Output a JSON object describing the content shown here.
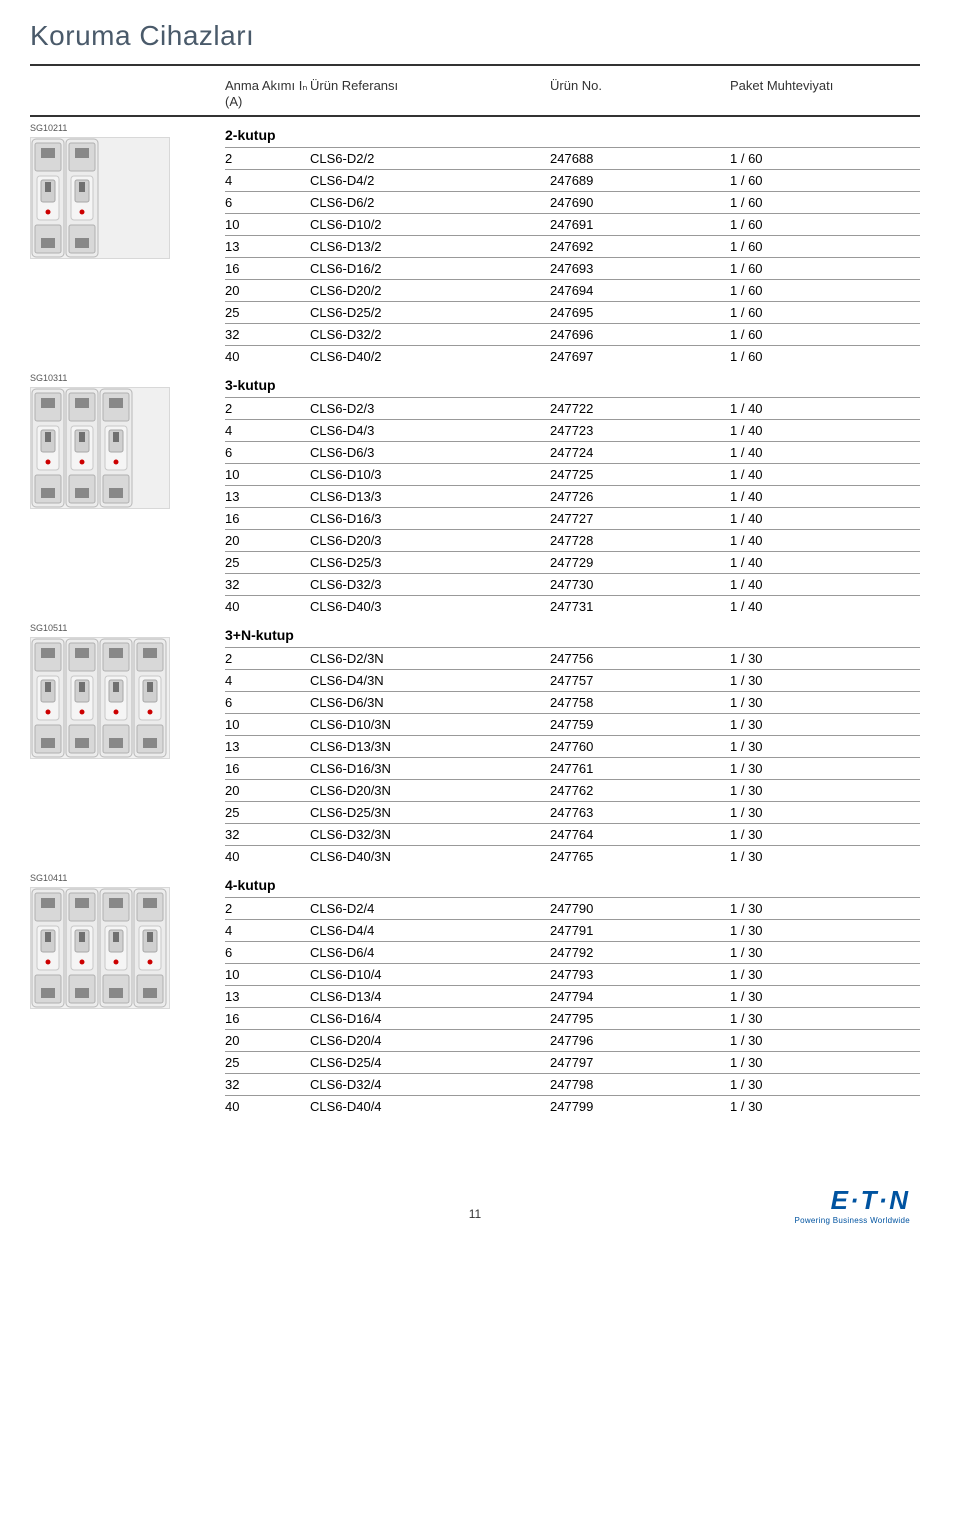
{
  "page_title": "Koruma Cihazları",
  "headers": {
    "col1": "Anma Akımı Iₙ (A)",
    "col2": "Ürün Referansı",
    "col3": "Ürün No.",
    "col4": "Paket Muhteviyatı"
  },
  "page_number": "11",
  "logo": {
    "brand": "E·T·N",
    "tagline": "Powering Business Worldwide"
  },
  "sections": [
    {
      "sg": "SG10211",
      "subtitle": "2-kutup",
      "poles": 2,
      "rows": [
        {
          "amp": "2",
          "ref": "CLS6-D2/2",
          "no": "247688",
          "pkg": "1 / 60"
        },
        {
          "amp": "4",
          "ref": "CLS6-D4/2",
          "no": "247689",
          "pkg": "1 / 60"
        },
        {
          "amp": "6",
          "ref": "CLS6-D6/2",
          "no": "247690",
          "pkg": "1 / 60"
        },
        {
          "amp": "10",
          "ref": "CLS6-D10/2",
          "no": "247691",
          "pkg": "1 / 60"
        },
        {
          "amp": "13",
          "ref": "CLS6-D13/2",
          "no": "247692",
          "pkg": "1 / 60"
        },
        {
          "amp": "16",
          "ref": "CLS6-D16/2",
          "no": "247693",
          "pkg": "1 / 60"
        },
        {
          "amp": "20",
          "ref": "CLS6-D20/2",
          "no": "247694",
          "pkg": "1 / 60"
        },
        {
          "amp": "25",
          "ref": "CLS6-D25/2",
          "no": "247695",
          "pkg": "1 / 60"
        },
        {
          "amp": "32",
          "ref": "CLS6-D32/2",
          "no": "247696",
          "pkg": "1 / 60"
        },
        {
          "amp": "40",
          "ref": "CLS6-D40/2",
          "no": "247697",
          "pkg": "1 / 60"
        }
      ]
    },
    {
      "sg": "SG10311",
      "subtitle": "3-kutup",
      "poles": 3,
      "rows": [
        {
          "amp": "2",
          "ref": "CLS6-D2/3",
          "no": "247722",
          "pkg": "1 / 40"
        },
        {
          "amp": "4",
          "ref": "CLS6-D4/3",
          "no": "247723",
          "pkg": "1 / 40"
        },
        {
          "amp": "6",
          "ref": "CLS6-D6/3",
          "no": "247724",
          "pkg": "1 / 40"
        },
        {
          "amp": "10",
          "ref": "CLS6-D10/3",
          "no": "247725",
          "pkg": "1 / 40"
        },
        {
          "amp": "13",
          "ref": "CLS6-D13/3",
          "no": "247726",
          "pkg": "1 / 40"
        },
        {
          "amp": "16",
          "ref": "CLS6-D16/3",
          "no": "247727",
          "pkg": "1 / 40"
        },
        {
          "amp": "20",
          "ref": "CLS6-D20/3",
          "no": "247728",
          "pkg": "1 / 40"
        },
        {
          "amp": "25",
          "ref": "CLS6-D25/3",
          "no": "247729",
          "pkg": "1 / 40"
        },
        {
          "amp": "32",
          "ref": "CLS6-D32/3",
          "no": "247730",
          "pkg": "1 / 40"
        },
        {
          "amp": "40",
          "ref": "CLS6-D40/3",
          "no": "247731",
          "pkg": "1 / 40"
        }
      ]
    },
    {
      "sg": "SG10511",
      "subtitle": "3+N-kutup",
      "poles": 4,
      "rows": [
        {
          "amp": "2",
          "ref": "CLS6-D2/3N",
          "no": "247756",
          "pkg": "1 / 30"
        },
        {
          "amp": "4",
          "ref": "CLS6-D4/3N",
          "no": "247757",
          "pkg": "1 / 30"
        },
        {
          "amp": "6",
          "ref": "CLS6-D6/3N",
          "no": "247758",
          "pkg": "1 / 30"
        },
        {
          "amp": "10",
          "ref": "CLS6-D10/3N",
          "no": "247759",
          "pkg": "1 / 30"
        },
        {
          "amp": "13",
          "ref": "CLS6-D13/3N",
          "no": "247760",
          "pkg": "1 / 30"
        },
        {
          "amp": "16",
          "ref": "CLS6-D16/3N",
          "no": "247761",
          "pkg": "1 / 30"
        },
        {
          "amp": "20",
          "ref": "CLS6-D20/3N",
          "no": "247762",
          "pkg": "1 / 30"
        },
        {
          "amp": "25",
          "ref": "CLS6-D25/3N",
          "no": "247763",
          "pkg": "1 / 30"
        },
        {
          "amp": "32",
          "ref": "CLS6-D32/3N",
          "no": "247764",
          "pkg": "1 / 30"
        },
        {
          "amp": "40",
          "ref": "CLS6-D40/3N",
          "no": "247765",
          "pkg": "1 / 30"
        }
      ]
    },
    {
      "sg": "SG10411",
      "subtitle": "4-kutup",
      "poles": 4,
      "rows": [
        {
          "amp": "2",
          "ref": "CLS6-D2/4",
          "no": "247790",
          "pkg": "1 / 30"
        },
        {
          "amp": "4",
          "ref": "CLS6-D4/4",
          "no": "247791",
          "pkg": "1 / 30"
        },
        {
          "amp": "6",
          "ref": "CLS6-D6/4",
          "no": "247792",
          "pkg": "1 / 30"
        },
        {
          "amp": "10",
          "ref": "CLS6-D10/4",
          "no": "247793",
          "pkg": "1 / 30"
        },
        {
          "amp": "13",
          "ref": "CLS6-D13/4",
          "no": "247794",
          "pkg": "1 / 30"
        },
        {
          "amp": "16",
          "ref": "CLS6-D16/4",
          "no": "247795",
          "pkg": "1 / 30"
        },
        {
          "amp": "20",
          "ref": "CLS6-D20/4",
          "no": "247796",
          "pkg": "1 / 30"
        },
        {
          "amp": "25",
          "ref": "CLS6-D25/4",
          "no": "247797",
          "pkg": "1 / 30"
        },
        {
          "amp": "32",
          "ref": "CLS6-D32/4",
          "no": "247798",
          "pkg": "1 / 30"
        },
        {
          "amp": "40",
          "ref": "CLS6-D40/4",
          "no": "247799",
          "pkg": "1 / 30"
        }
      ]
    }
  ]
}
